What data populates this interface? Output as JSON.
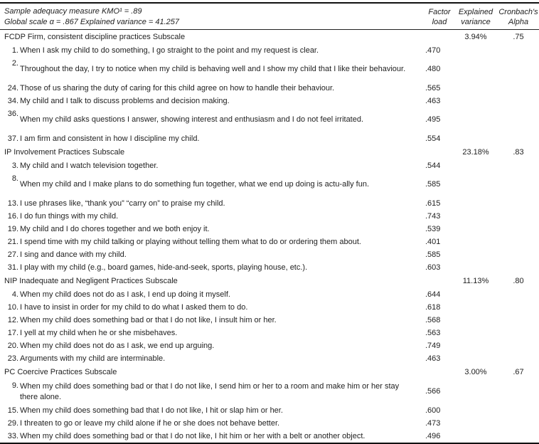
{
  "header": {
    "line1": "Sample adequacy measure KMO¹ = .89",
    "line2": "Global scale α = .867 Explained variance = 41.257",
    "col_load": [
      "Factor",
      "load"
    ],
    "col_variance": [
      "Explained",
      "variance"
    ],
    "col_alpha": [
      "Cronbach's",
      "Alpha"
    ]
  },
  "subscales": [
    {
      "title": "FCDP Firm, consistent discipline practices Subscale",
      "variance": "3.94%",
      "alpha": ".75",
      "items": [
        {
          "num": "1.",
          "text": "When I ask my child to do something, I go straight to the point and my request is clear.",
          "load": ".470"
        },
        {
          "num": "2.",
          "text": "Throughout the day, I try to notice when my child is behaving well and I show my child that I like their behaviour.",
          "load": ".480"
        },
        {
          "num": "24.",
          "text": "Those of us sharing the duty of caring for this child agree on how to handle their behaviour.",
          "load": ".565"
        },
        {
          "num": "34.",
          "text": "My child and I talk to discuss problems and decision making.",
          "load": ".463"
        },
        {
          "num": "36.",
          "text": "When my child asks questions I answer, showing interest and enthusiasm and I do not feel irritated.",
          "load": ".495"
        },
        {
          "num": "37.",
          "text": "I am firm and consistent in how I discipline my child.",
          "load": ".554"
        }
      ]
    },
    {
      "title": "IP Involvement Practices Subscale",
      "variance": "23.18%",
      "alpha": ".83",
      "items": [
        {
          "num": "3.",
          "text": "My child and I watch television together.",
          "load": ".544"
        },
        {
          "num": "8.",
          "text": "When my child and I make plans to do something fun together, what we end up doing is actu-ally fun.",
          "load": ".585"
        },
        {
          "num": "13.",
          "text": "I use phrases like, “thank you” “carry on” to praise my child.",
          "load": ".615"
        },
        {
          "num": "16.",
          "text": "I do fun things with my child.",
          "load": ".743"
        },
        {
          "num": "19.",
          "text": "My child and I do chores together and we both enjoy it.",
          "load": ".539"
        },
        {
          "num": "21.",
          "text": "I spend time with my child talking or playing without telling them what to do or ordering them about.",
          "load": ".401"
        },
        {
          "num": "27.",
          "text": "I sing and dance with my child.",
          "load": ".585"
        },
        {
          "num": "31.",
          "text": "I play with my child (e.g., board games, hide-and-seek, sports, playing house, etc.).",
          "load": ".603"
        }
      ]
    },
    {
      "title": "NIP Inadequate and Negligent Practices Subscale",
      "variance": "11.13%",
      "alpha": ".80",
      "items": [
        {
          "num": "4.",
          "text": "When my child does not do as I ask, I end up doing it myself.",
          "load": ".644"
        },
        {
          "num": "10.",
          "text": "I have to insist in order for my child to do what I asked them to do.",
          "load": ".618"
        },
        {
          "num": "12.",
          "text": "When my child does something bad or that I do not like, I insult him or her.",
          "load": ".568"
        },
        {
          "num": "17.",
          "text": "I yell at my child when he or she misbehaves.",
          "load": ".563"
        },
        {
          "num": "20.",
          "text": "When my child does not do as I ask, we end up arguing.",
          "load": ".749"
        },
        {
          "num": "23.",
          "text": "Arguments with my child are interminable.",
          "load": ".463"
        }
      ]
    },
    {
      "title": "PC Coercive Practices Subscale",
      "variance": "3.00%",
      "alpha": ".67",
      "items": [
        {
          "num": "9.",
          "text": "When my child does something bad or that I do not like, I send him or her to a room and make him or her stay there alone.",
          "load": ".566"
        },
        {
          "num": "15.",
          "text": "When my child does something bad that I do not like, I hit or slap him or her.",
          "load": ".600"
        },
        {
          "num": "29.",
          "text": "I threaten to go or leave my child alone if he or she does not behave better.",
          "load": ".473"
        },
        {
          "num": "33.",
          "text": " When my child does something bad or that I do not like, I hit him or her with a belt or another object.",
          "load": ".496"
        }
      ]
    }
  ]
}
